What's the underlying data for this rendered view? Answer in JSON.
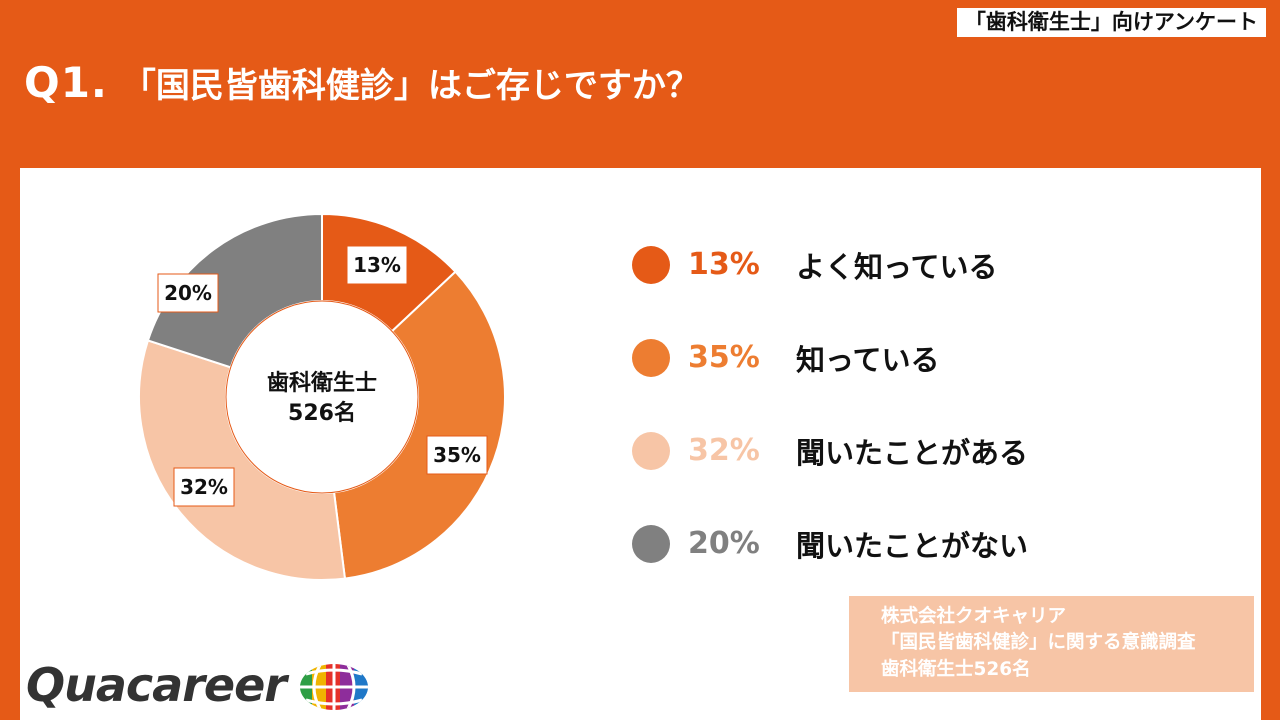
{
  "header": {
    "survey_tag": "「歯科衛生士」向けアンケート",
    "question_number": "Q1.",
    "question_text": "「国民皆歯科健診」はご存じですか？"
  },
  "chart_data": {
    "type": "pie",
    "variant": "donut",
    "center_label": [
      "歯科衛生士",
      "526名"
    ],
    "slices": [
      {
        "label": "よく知っている",
        "value": 13,
        "display": "13%",
        "color": "#e55a17"
      },
      {
        "label": "知っている",
        "value": 35,
        "display": "35%",
        "color": "#ed7d31"
      },
      {
        "label": "聞いたことがある",
        "value": 32,
        "display": "32%",
        "color": "#f7c5a6"
      },
      {
        "label": "聞いたことがない",
        "value": 20,
        "display": "20%",
        "color": "#808080"
      }
    ],
    "legend_position": "right"
  },
  "source": {
    "line1": "株式会社クオキャリア",
    "line2": "「国民皆歯科健診」に関する意識調査",
    "line3": "歯科衛生士526名"
  },
  "logo": {
    "text": "Quacareer"
  },
  "colors": {
    "brand_orange": "#e55a17",
    "white": "#ffffff"
  }
}
